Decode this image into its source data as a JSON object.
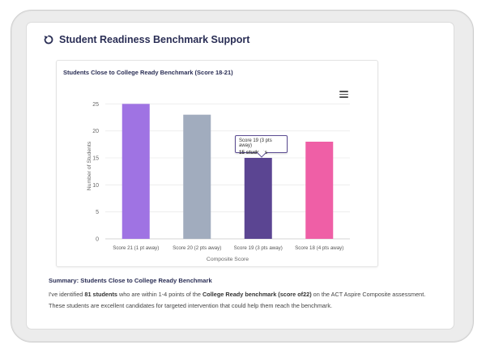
{
  "page": {
    "title": "Student Readiness Benchmark Support"
  },
  "chart_data": {
    "type": "bar",
    "title": "Students Close to College Ready Benchmark (Score 18-21)",
    "xlabel": "Composite Score",
    "ylabel": "Number of Students",
    "categories": [
      "Score 21 (1 pt away)",
      "Score 20 (2 pts away)",
      "Score 19 (3 pts away)",
      "Score 18 (4 pts away)"
    ],
    "values": [
      25,
      23,
      15,
      18
    ],
    "colors": [
      "#9f73e3",
      "#a1acbe",
      "#5b4592",
      "#ef5fa6"
    ],
    "ylim": [
      0,
      27
    ],
    "yticks": [
      0,
      5,
      10,
      15,
      20,
      25
    ],
    "grid": true,
    "legend": "none",
    "tooltip": {
      "line1": "Score 19 (3 pts away)",
      "line2": "15 students"
    }
  },
  "summary": {
    "heading": "Summary: Students Close to College Ready Benchmark",
    "text_1": "I've identified ",
    "count": "81 students",
    "text_2": " who are within 1-4 points of the ",
    "benchmark": "College Ready benchmark (score of22)",
    "text_3": " on the ACT Aspire Composite assessment. These students are excellent candidates for targeted intervention that could help them reach the benchmark."
  }
}
